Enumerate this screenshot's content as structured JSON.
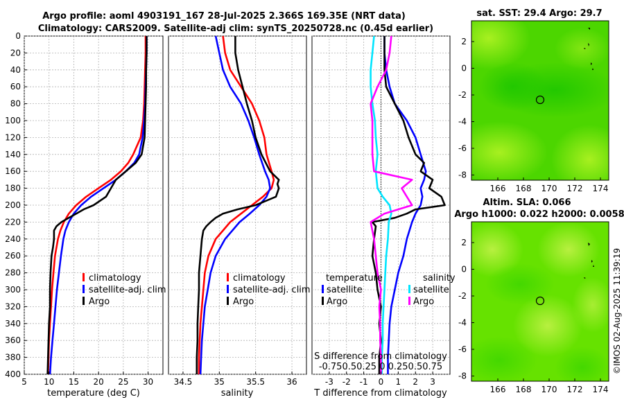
{
  "title": {
    "line1": "Argo profile: aoml 4903191_167 28-Jul-2025 2.366S 169.35E (NRT data)",
    "line2": "Climatology: CARS2009. Satellite-adj clim: synTS_20250728.nc (0.45d earlier)"
  },
  "colors": {
    "climatology": "#ff0000",
    "satellite": "#0000ff",
    "argo": "#000000",
    "sat_salinity": "#00e5ff",
    "argo_salinity": "#ff00ff",
    "zero_line": "#000000"
  },
  "depth_axis": {
    "ylim": [
      0,
      400
    ],
    "ticks": [
      0,
      20,
      40,
      60,
      80,
      100,
      120,
      140,
      160,
      180,
      200,
      220,
      240,
      260,
      280,
      300,
      320,
      340,
      360,
      380,
      400
    ],
    "direction": "down"
  },
  "legend": {
    "climatology": "climatology",
    "satellite_adj": "satellite-adj. clim",
    "argo": "Argo",
    "temperature": "temperature",
    "salinity": "salinity",
    "satellite": "satellite"
  },
  "chart_data": [
    {
      "id": "temperature",
      "type": "line",
      "xlabel": "temperature (deg C)",
      "xlim": [
        5,
        33
      ],
      "xticks": [
        5,
        10,
        15,
        20,
        25,
        30
      ],
      "xtick_labels": [
        "5",
        "10",
        "15",
        "20",
        "25",
        "30"
      ],
      "series": [
        {
          "name": "climatology",
          "color": "red",
          "depth": [
            0,
            20,
            40,
            60,
            80,
            100,
            120,
            140,
            150,
            160,
            170,
            180,
            190,
            200,
            210,
            220,
            230,
            240,
            260,
            280,
            300,
            320,
            340,
            360,
            380,
            400
          ],
          "values": [
            29.5,
            29.5,
            29.4,
            29.3,
            29.2,
            29.0,
            28.5,
            27.0,
            26.0,
            24.5,
            22.5,
            20.0,
            17.5,
            15.5,
            14.0,
            13.0,
            12.3,
            11.8,
            11.2,
            10.9,
            10.6,
            10.4,
            10.2,
            10.0,
            9.9,
            9.8
          ]
        },
        {
          "name": "satellite-adj. clim",
          "color": "blue",
          "depth": [
            0,
            20,
            40,
            60,
            80,
            100,
            120,
            140,
            150,
            160,
            170,
            180,
            190,
            200,
            210,
            220,
            230,
            240,
            260,
            280,
            300,
            320,
            340,
            360,
            380,
            400
          ],
          "values": [
            29.7,
            29.7,
            29.6,
            29.5,
            29.4,
            29.2,
            28.9,
            28.2,
            27.2,
            25.5,
            23.5,
            21.0,
            18.5,
            16.5,
            15.0,
            14.0,
            13.3,
            12.9,
            12.4,
            12.0,
            11.6,
            11.3,
            11.0,
            10.7,
            10.4,
            10.2
          ]
        },
        {
          "name": "Argo",
          "color": "black",
          "depth": [
            0,
            20,
            40,
            60,
            80,
            100,
            120,
            130,
            140,
            150,
            160,
            170,
            180,
            190,
            200,
            205,
            210,
            215,
            220,
            225,
            230,
            240,
            250,
            260,
            270,
            280,
            300,
            320,
            340,
            360,
            380,
            400
          ],
          "values": [
            29.7,
            29.7,
            29.6,
            29.6,
            29.5,
            29.4,
            29.3,
            29.0,
            28.7,
            27.5,
            25.5,
            23.5,
            22.5,
            21.5,
            19.0,
            17.0,
            15.5,
            14.0,
            12.5,
            11.5,
            11.0,
            11.0,
            10.8,
            10.5,
            10.4,
            10.3,
            10.2,
            10.2,
            10.0,
            9.9,
            9.8,
            9.7
          ]
        }
      ]
    },
    {
      "id": "salinity",
      "type": "line",
      "xlabel": "salinity",
      "xlim": [
        34.3,
        36.2
      ],
      "xticks": [
        34.5,
        35,
        35.5,
        36
      ],
      "xtick_labels": [
        "34.5",
        "35",
        "35.5",
        "36"
      ],
      "series": [
        {
          "name": "climatology",
          "color": "red",
          "depth": [
            0,
            20,
            40,
            60,
            80,
            100,
            120,
            140,
            160,
            170,
            180,
            190,
            200,
            210,
            220,
            230,
            240,
            260,
            280,
            300,
            320,
            340,
            360,
            380,
            400
          ],
          "values": [
            35.05,
            35.08,
            35.15,
            35.3,
            35.45,
            35.55,
            35.62,
            35.65,
            35.72,
            35.75,
            35.72,
            35.6,
            35.45,
            35.3,
            35.15,
            35.05,
            34.95,
            34.85,
            34.8,
            34.78,
            34.76,
            34.74,
            34.73,
            34.72,
            34.72
          ]
        },
        {
          "name": "satellite-adj. clim",
          "color": "blue",
          "depth": [
            0,
            20,
            40,
            60,
            80,
            100,
            120,
            140,
            160,
            170,
            180,
            190,
            200,
            210,
            220,
            240,
            260,
            280,
            300,
            320,
            340,
            360,
            380,
            400
          ],
          "values": [
            34.95,
            35.0,
            35.05,
            35.15,
            35.3,
            35.4,
            35.48,
            35.55,
            35.63,
            35.68,
            35.7,
            35.65,
            35.55,
            35.42,
            35.28,
            35.08,
            34.95,
            34.88,
            34.84,
            34.8,
            34.78,
            34.76,
            34.75,
            34.74
          ]
        },
        {
          "name": "Argo",
          "color": "black",
          "depth": [
            0,
            20,
            40,
            60,
            80,
            100,
            120,
            140,
            160,
            170,
            175,
            180,
            190,
            200,
            205,
            210,
            215,
            220,
            225,
            230,
            240,
            260,
            280,
            300,
            320,
            340,
            360,
            380,
            400
          ],
          "values": [
            35.22,
            35.22,
            35.26,
            35.32,
            35.38,
            35.45,
            35.5,
            35.58,
            35.7,
            35.82,
            35.8,
            35.82,
            35.78,
            35.5,
            35.25,
            35.05,
            34.95,
            34.88,
            34.82,
            34.78,
            34.76,
            34.74,
            34.72,
            34.72,
            34.71,
            34.7,
            34.7,
            34.69,
            34.69
          ]
        }
      ]
    },
    {
      "id": "difference",
      "type": "line",
      "xlabel": "T difference from climatology",
      "xlim": [
        -4,
        4
      ],
      "xticks": [
        -3,
        -2,
        -1,
        0,
        1,
        2,
        3
      ],
      "xtick_labels": [
        "-3",
        "-2",
        "-1",
        "0",
        "1",
        "2",
        "3"
      ],
      "top_axis_label": "S difference from climatology",
      "top_axis_ticks": "-0.750.50.25 0 0.250.50.75",
      "series": [
        {
          "name": "temperature satellite",
          "color": "blue",
          "depth": [
            0,
            20,
            40,
            60,
            80,
            100,
            120,
            140,
            160,
            170,
            180,
            190,
            200,
            210,
            220,
            240,
            260,
            280,
            300,
            320,
            340,
            360,
            380,
            400
          ],
          "values": [
            0.2,
            0.2,
            0.3,
            0.5,
            0.8,
            1.5,
            2.0,
            2.3,
            2.6,
            2.5,
            2.3,
            2.4,
            2.3,
            2.0,
            1.8,
            1.5,
            1.3,
            1.0,
            0.8,
            0.6,
            0.5,
            0.45,
            0.4,
            0.4
          ]
        },
        {
          "name": "temperature Argo",
          "color": "black",
          "depth": [
            0,
            20,
            40,
            60,
            80,
            100,
            120,
            140,
            150,
            160,
            170,
            180,
            190,
            200,
            205,
            210,
            215,
            220,
            225,
            240,
            260,
            280,
            300,
            320,
            340,
            360,
            380,
            400
          ],
          "values": [
            0.2,
            0.2,
            0.2,
            0.3,
            0.8,
            1.3,
            1.6,
            2.0,
            2.5,
            2.3,
            3.0,
            2.8,
            3.5,
            3.7,
            2.0,
            1.5,
            0.8,
            -0.5,
            -0.3,
            -0.4,
            -0.5,
            -0.3,
            -0.2,
            0.0,
            -0.1,
            0.0,
            -0.1,
            -0.1
          ]
        },
        {
          "name": "salinity satellite",
          "color": "cyan",
          "depth": [
            0,
            20,
            40,
            60,
            80,
            100,
            120,
            140,
            160,
            180,
            190,
            200,
            210,
            220,
            240,
            260,
            280,
            300,
            320,
            340,
            360,
            380,
            400
          ],
          "values": [
            -0.4,
            -0.5,
            -0.6,
            -0.6,
            -0.5,
            -0.35,
            -0.3,
            -0.2,
            -0.3,
            -0.2,
            0.1,
            0.5,
            0.6,
            0.45,
            0.4,
            0.3,
            0.25,
            0.2,
            0.15,
            0.1,
            0.1,
            0.05,
            0.05
          ]
        },
        {
          "name": "salinity Argo",
          "color": "magenta",
          "depth": [
            0,
            20,
            40,
            60,
            80,
            100,
            120,
            140,
            160,
            170,
            180,
            190,
            200,
            210,
            220,
            240,
            260,
            280,
            300,
            320,
            340,
            360,
            380,
            400
          ],
          "values": [
            0.6,
            0.5,
            0.3,
            -0.2,
            -0.6,
            -0.5,
            -0.5,
            -0.5,
            -0.4,
            1.8,
            1.2,
            1.5,
            1.8,
            0.2,
            -0.6,
            -0.4,
            -0.3,
            -0.2,
            0.0,
            -0.1,
            -0.05,
            -0.05,
            0.0,
            0.0
          ]
        }
      ]
    }
  ],
  "maps": [
    {
      "id": "sst",
      "title": "sat. SST: 29.4 Argo: 29.7",
      "xticks": [
        "166",
        "168",
        "170",
        "172",
        "174"
      ],
      "yticks": [
        "2",
        "0",
        "-2",
        "-4",
        "-6",
        "-8"
      ]
    },
    {
      "id": "sla",
      "title_line1": "Altim. SLA: 0.066",
      "title_line2": "Argo h1000: 0.022 h2000: 0.0058",
      "xticks": [
        "166",
        "168",
        "170",
        "172",
        "174"
      ],
      "yticks": [
        "2",
        "0",
        "-2",
        "-4",
        "-6",
        "-8"
      ]
    }
  ],
  "credit": "©IMOS 02-Aug-2025 11:39:19"
}
